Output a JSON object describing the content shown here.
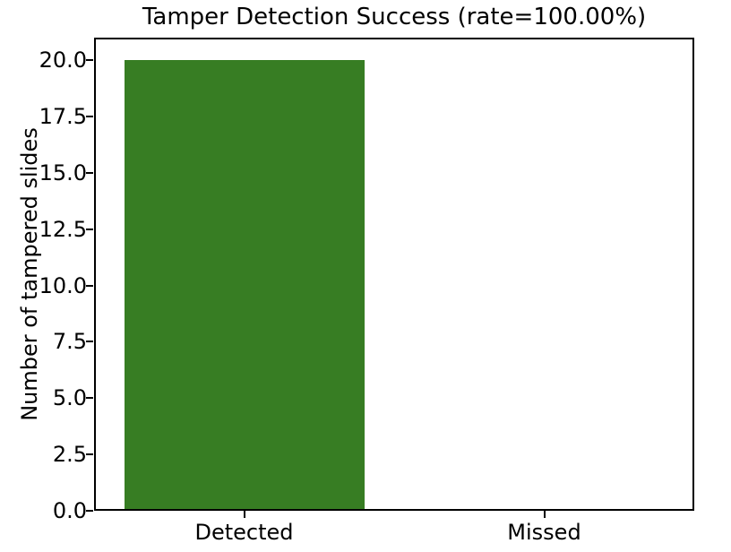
{
  "chart_data": {
    "type": "bar",
    "title": "Tamper Detection Success (rate=100.00%)",
    "categories": [
      "Detected",
      "Missed"
    ],
    "values": [
      20,
      0
    ],
    "xlabel": "",
    "ylabel": "Number of tampered slides",
    "ylim": [
      0,
      21
    ],
    "ytick_values": [
      0,
      2.5,
      5,
      7.5,
      10,
      12.5,
      15,
      17.5,
      20
    ],
    "ytick_labels": [
      "0.0",
      "2.5",
      "5.0",
      "7.5",
      "10.0",
      "12.5",
      "15.0",
      "17.5",
      "20.0"
    ],
    "bar_color": "#377d23",
    "bar_width_fraction": 0.8,
    "grid": false,
    "legend_position": null,
    "axes_color": "#000000",
    "text_color": "#000000",
    "background_color": "#ffffff"
  }
}
